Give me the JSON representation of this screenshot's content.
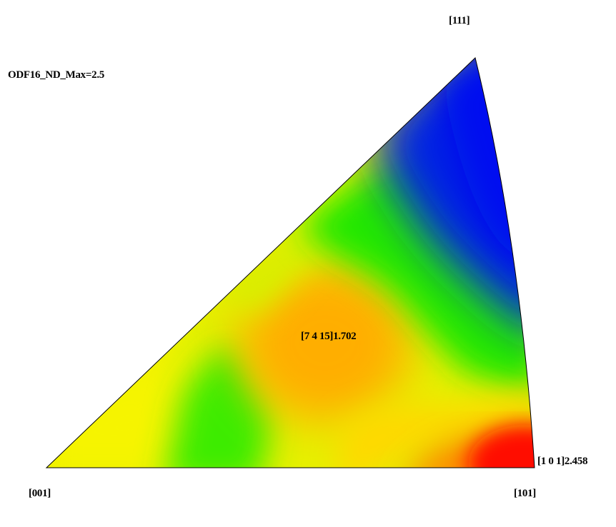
{
  "title": "ODF16_ND_Max=2.5",
  "corners": {
    "c001": "[001]",
    "c101": "[101]",
    "c111": "[111]"
  },
  "annotations": {
    "center_label": "[7 4 15]1.702",
    "corner_label": "[1 0 1]2.458"
  },
  "colors": {
    "blue": "#0018e8",
    "green": "#22ee00",
    "yellow": "#fff500",
    "orange": "#ffa800",
    "red": "#ff1800",
    "outline": "#000000"
  }
}
